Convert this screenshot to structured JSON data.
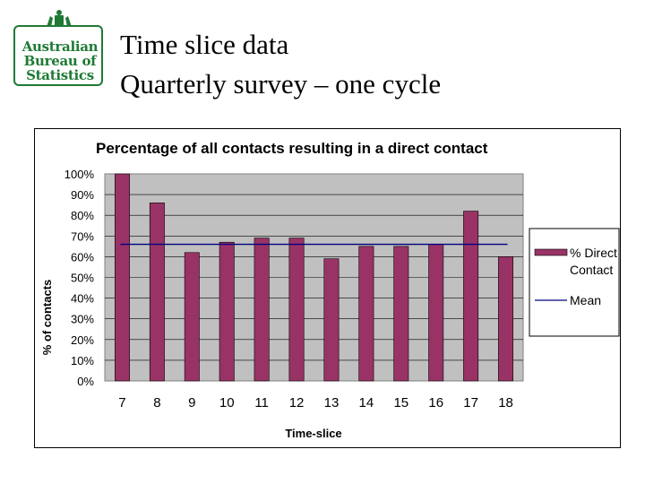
{
  "header": {
    "logo_lines": [
      "Australian",
      "Bureau of",
      "Statistics"
    ],
    "title_line1": "Time slice data",
    "title_line2": "Quarterly survey – one cycle"
  },
  "colors": {
    "bar": "#993366",
    "plot_area": "#c0c0c0",
    "mean_line": "#000080",
    "logo_green": "#1f7a35"
  },
  "chart_data": {
    "type": "bar",
    "title": "Percentage of all contacts resulting in a direct contact",
    "xlabel": "Time-slice",
    "ylabel": "% of contacts",
    "categories": [
      "7",
      "8",
      "9",
      "10",
      "11",
      "12",
      "13",
      "14",
      "15",
      "16",
      "17",
      "18"
    ],
    "ylim": [
      0,
      100
    ],
    "yticks": [
      "0%",
      "10%",
      "20%",
      "30%",
      "40%",
      "50%",
      "60%",
      "70%",
      "80%",
      "90%",
      "100%"
    ],
    "grid": true,
    "legend_position": "right",
    "series": [
      {
        "name": "% Direct Contact",
        "kind": "bar",
        "values": [
          100,
          86,
          62,
          67,
          69,
          69,
          59,
          65,
          65,
          66,
          82,
          60
        ]
      },
      {
        "name": "Mean",
        "kind": "line",
        "value": 66
      }
    ]
  }
}
